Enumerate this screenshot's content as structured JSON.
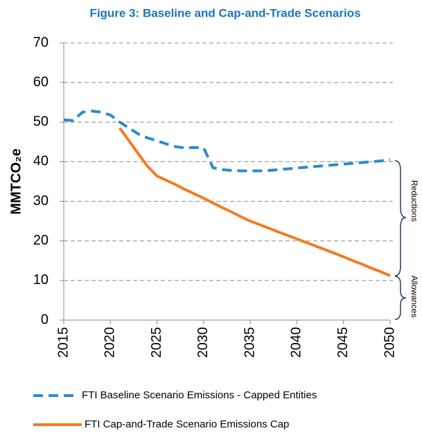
{
  "chart_data": {
    "type": "line",
    "title": "Figure 3: Baseline and Cap-and-Trade Scenarios",
    "ylabel": "MMTCO₂e",
    "x": [
      2015,
      2016,
      2017,
      2018,
      2019,
      2020,
      2021,
      2022,
      2023,
      2024,
      2025,
      2026,
      2027,
      2028,
      2029,
      2030,
      2031,
      2032,
      2033,
      2034,
      2035,
      2036,
      2037,
      2038,
      2039,
      2040,
      2041,
      2042,
      2043,
      2044,
      2045,
      2046,
      2047,
      2048,
      2049,
      2050
    ],
    "series": [
      {
        "name": "FTI Baseline Scenario Emissions - Capped Entities",
        "color": "#2e8bc9",
        "dashed": true,
        "values": [
          50.6,
          50.4,
          52.5,
          52.8,
          52.5,
          51.8,
          50,
          48.5,
          47,
          46,
          45.3,
          44.5,
          43.8,
          43.5,
          43.6,
          43.5,
          38.5,
          38,
          37.8,
          37.7,
          37.7,
          37.7,
          37.8,
          38,
          38.2,
          38.4,
          38.6,
          38.8,
          39,
          39.2,
          39.4,
          39.6,
          39.8,
          40,
          40.2,
          40.5
        ]
      },
      {
        "name": "FTI Cap-and-Trade Scenario Emissions Cap",
        "color": "#f47b20",
        "dashed": false,
        "values": [
          null,
          null,
          null,
          null,
          null,
          null,
          48.5,
          45.3,
          42,
          38.8,
          36.4,
          35.3,
          34.2,
          33.0,
          31.9,
          30.8,
          29.6,
          28.4,
          27.3,
          26.1,
          25.0,
          24.1,
          23.2,
          22.3,
          21.4,
          20.5,
          19.6,
          18.7,
          17.8,
          16.9,
          16.0,
          15.0,
          14.1,
          13.1,
          12.2,
          11.2
        ]
      }
    ],
    "xlim": [
      2015,
      2050
    ],
    "xticks": [
      2015,
      2020,
      2025,
      2030,
      2035,
      2040,
      2045,
      2050
    ],
    "ylim": [
      0,
      70
    ],
    "yticks": [
      0,
      10,
      20,
      30,
      40,
      50,
      60,
      70
    ],
    "grid": true,
    "annotations": [
      "Reductions",
      "Allowances"
    ]
  }
}
